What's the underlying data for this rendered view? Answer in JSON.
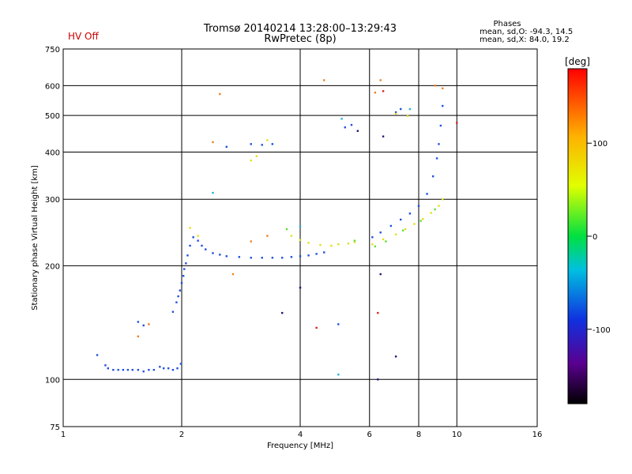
{
  "header": {
    "title_line1": "Tromsø 20140214 13:28:00–13:29:43",
    "title_line2": "RwPretec (8p)",
    "status": "HV Off",
    "phases_title": "Phases",
    "phases_o": "mean, sd,O: -94.3, 14.5",
    "phases_x": "mean, sd,X:  84.0, 19.2"
  },
  "colorbar": {
    "unit": "[deg]",
    "ticks": [
      {
        "label": "100",
        "value": 100
      },
      {
        "label": "0",
        "value": 0
      },
      {
        "label": "-100",
        "value": -100
      }
    ],
    "range": [
      -180,
      180
    ]
  },
  "chart_data": {
    "type": "scatter",
    "title": "Tromsø 20140214 13:28:00–13:29:43",
    "subtitle": "RwPretec (8p)",
    "xlabel": "Frequency [MHz]",
    "ylabel": "Stationary phase Virtual Height [km]",
    "x_scale": "log",
    "y_scale": "log",
    "xlim": [
      1,
      16
    ],
    "ylim": [
      75,
      750
    ],
    "grid": true,
    "x_ticks": [
      1,
      2,
      4,
      6,
      8,
      10,
      16
    ],
    "y_ticks": [
      75,
      100,
      200,
      300,
      400,
      500,
      600,
      750
    ],
    "series": [
      {
        "color": "#2050e0",
        "points": [
          [
            1.22,
            116
          ],
          [
            1.28,
            109
          ],
          [
            1.3,
            107
          ],
          [
            1.34,
            106
          ],
          [
            1.38,
            106
          ],
          [
            1.42,
            106
          ],
          [
            1.46,
            106
          ],
          [
            1.5,
            106
          ],
          [
            1.55,
            106
          ],
          [
            1.6,
            105
          ],
          [
            1.65,
            106
          ],
          [
            1.7,
            106
          ],
          [
            1.76,
            108
          ],
          [
            1.8,
            107
          ],
          [
            1.85,
            107
          ],
          [
            1.9,
            106
          ],
          [
            1.95,
            107
          ],
          [
            1.99,
            110
          ],
          [
            1.9,
            151
          ],
          [
            1.94,
            160
          ],
          [
            1.96,
            166
          ],
          [
            1.98,
            172
          ],
          [
            2.0,
            180
          ],
          [
            2.02,
            188
          ],
          [
            2.03,
            196
          ],
          [
            2.05,
            203
          ],
          [
            2.07,
            213
          ],
          [
            2.1,
            226
          ],
          [
            2.14,
            238
          ],
          [
            2.2,
            233
          ],
          [
            2.25,
            226
          ],
          [
            2.3,
            221
          ],
          [
            2.4,
            216
          ],
          [
            2.5,
            214
          ],
          [
            2.6,
            212
          ],
          [
            2.8,
            211
          ],
          [
            3.0,
            210
          ],
          [
            3.2,
            210
          ],
          [
            3.4,
            210
          ],
          [
            3.6,
            210
          ],
          [
            3.8,
            211
          ],
          [
            4.0,
            212
          ],
          [
            4.2,
            213
          ],
          [
            4.4,
            215
          ],
          [
            4.6,
            217
          ],
          [
            6.1,
            238
          ],
          [
            6.4,
            245
          ],
          [
            6.8,
            255
          ],
          [
            7.2,
            265
          ],
          [
            7.6,
            275
          ],
          [
            8.0,
            288
          ],
          [
            8.4,
            310
          ],
          [
            8.7,
            345
          ],
          [
            8.9,
            385
          ],
          [
            9.0,
            420
          ],
          [
            9.1,
            470
          ],
          [
            9.2,
            530
          ],
          [
            3.0,
            420
          ],
          [
            3.2,
            418
          ],
          [
            3.4,
            420
          ],
          [
            5.2,
            465
          ],
          [
            5.4,
            472
          ],
          [
            7.0,
            510
          ],
          [
            7.2,
            520
          ],
          [
            1.55,
            142
          ],
          [
            1.6,
            139
          ],
          [
            2.6,
            413
          ],
          [
            5.0,
            140
          ]
        ]
      },
      {
        "color": "#e0e020",
        "points": [
          [
            3.8,
            240
          ],
          [
            4.0,
            234
          ],
          [
            4.2,
            230
          ],
          [
            4.5,
            227
          ],
          [
            4.8,
            226
          ],
          [
            5.0,
            228
          ],
          [
            5.3,
            229
          ],
          [
            5.5,
            231
          ],
          [
            6.1,
            228
          ],
          [
            6.5,
            235
          ],
          [
            7.0,
            242
          ],
          [
            7.4,
            250
          ],
          [
            7.8,
            258
          ],
          [
            8.2,
            266
          ],
          [
            8.6,
            276
          ],
          [
            9.0,
            288
          ],
          [
            9.2,
            300
          ],
          [
            2.1,
            252
          ],
          [
            2.2,
            240
          ],
          [
            3.0,
            380
          ],
          [
            3.1,
            390
          ],
          [
            3.3,
            430
          ],
          [
            7.0,
            505
          ],
          [
            7.5,
            498
          ]
        ]
      },
      {
        "color": "#60e030",
        "points": [
          [
            6.2,
            225
          ],
          [
            6.6,
            232
          ],
          [
            7.3,
            248
          ],
          [
            8.1,
            263
          ],
          [
            8.8,
            282
          ],
          [
            3.7,
            250
          ],
          [
            5.5,
            233
          ]
        ]
      },
      {
        "color": "#f08020",
        "points": [
          [
            2.5,
            570
          ],
          [
            2.4,
            425
          ],
          [
            3.0,
            232
          ],
          [
            3.3,
            240
          ],
          [
            4.6,
            620
          ],
          [
            6.2,
            575
          ],
          [
            6.4,
            620
          ],
          [
            1.55,
            130
          ],
          [
            1.65,
            140
          ],
          [
            2.7,
            190
          ],
          [
            8.8,
            600
          ],
          [
            9.2,
            590
          ]
        ]
      },
      {
        "color": "#e02020",
        "points": [
          [
            4.4,
            137
          ],
          [
            6.5,
            580
          ],
          [
            10.0,
            478
          ],
          [
            6.3,
            150
          ]
        ]
      },
      {
        "color": "#20b0e0",
        "points": [
          [
            5.0,
            103
          ],
          [
            2.4,
            312
          ],
          [
            5.1,
            490
          ],
          [
            4.0,
            254
          ],
          [
            7.6,
            520
          ]
        ]
      },
      {
        "color": "#301080",
        "points": [
          [
            5.6,
            455
          ],
          [
            6.4,
            190
          ],
          [
            7.0,
            115
          ],
          [
            3.6,
            150
          ],
          [
            6.3,
            100
          ],
          [
            4.0,
            175
          ],
          [
            6.5,
            440
          ]
        ]
      }
    ]
  }
}
